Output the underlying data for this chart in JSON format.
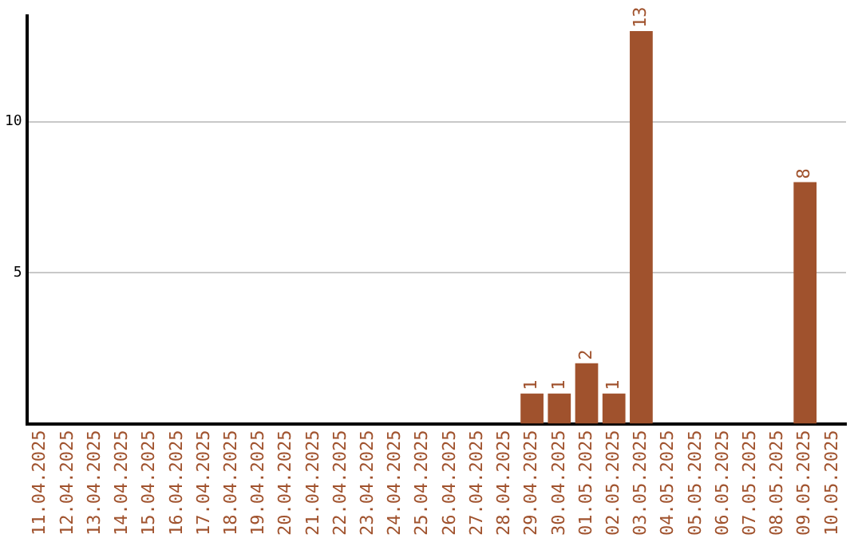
{
  "chart_data": {
    "type": "bar",
    "categories": [
      "11.04.2025",
      "12.04.2025",
      "13.04.2025",
      "14.04.2025",
      "15.04.2025",
      "16.04.2025",
      "17.04.2025",
      "18.04.2025",
      "19.04.2025",
      "20.04.2025",
      "21.04.2025",
      "22.04.2025",
      "23.04.2025",
      "24.04.2025",
      "25.04.2025",
      "26.04.2025",
      "27.04.2025",
      "28.04.2025",
      "29.04.2025",
      "30.04.2025",
      "01.05.2025",
      "02.05.2025",
      "03.05.2025",
      "04.05.2025",
      "05.05.2025",
      "06.05.2025",
      "07.05.2025",
      "08.05.2025",
      "09.05.2025",
      "10.05.2025"
    ],
    "values": [
      0,
      0,
      0,
      0,
      0,
      0,
      0,
      0,
      0,
      0,
      0,
      0,
      0,
      0,
      0,
      0,
      0,
      0,
      1,
      1,
      2,
      1,
      13,
      0,
      0,
      0,
      0,
      0,
      8,
      0
    ],
    "value_labels": [
      null,
      null,
      null,
      null,
      null,
      null,
      null,
      null,
      null,
      null,
      null,
      null,
      null,
      null,
      null,
      null,
      null,
      null,
      "1",
      "1",
      "2",
      "1",
      "13",
      null,
      null,
      null,
      null,
      null,
      "8",
      null
    ],
    "color": "#a0522d",
    "ylim": [
      0,
      13.5
    ],
    "yticks": [
      5,
      10
    ],
    "grid": "y"
  }
}
